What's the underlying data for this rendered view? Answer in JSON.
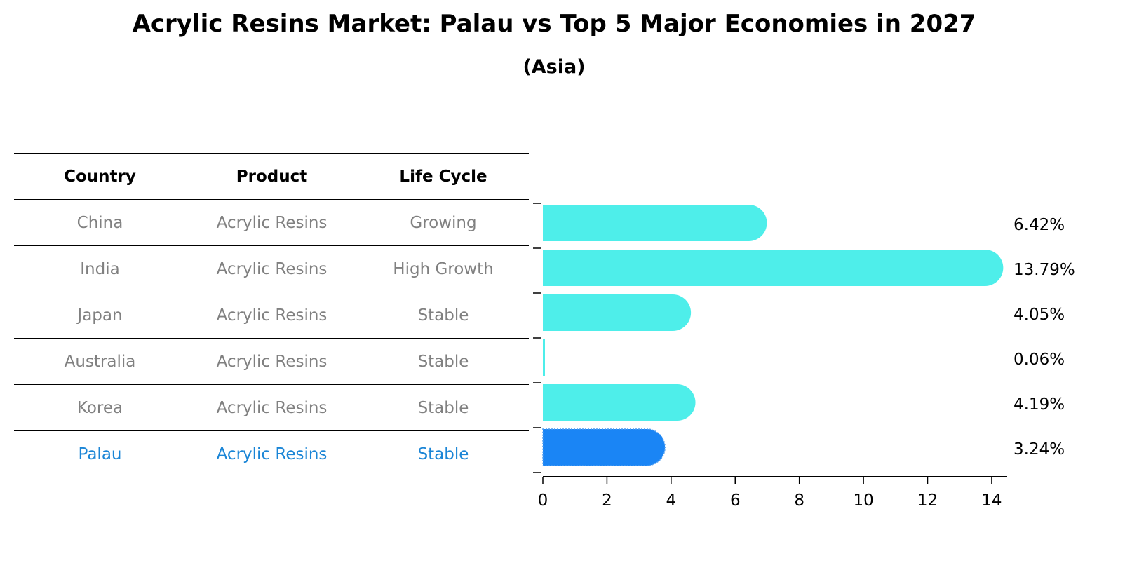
{
  "title": "Acrylic Resins Market: Palau vs Top 5 Major Economies in 2027",
  "subtitle": "(Asia)",
  "table": {
    "headers": [
      "Country",
      "Product",
      "Life Cycle"
    ],
    "rows": [
      {
        "country": "China",
        "product": "Acrylic Resins",
        "life_cycle": "Growing",
        "highlight": false
      },
      {
        "country": "India",
        "product": "Acrylic Resins",
        "life_cycle": "High Growth",
        "highlight": false
      },
      {
        "country": "Japan",
        "product": "Acrylic Resins",
        "life_cycle": "Stable",
        "highlight": false
      },
      {
        "country": "Australia",
        "product": "Acrylic Resins",
        "life_cycle": "Stable",
        "highlight": false
      },
      {
        "country": "Korea",
        "product": "Acrylic Resins",
        "life_cycle": "Stable",
        "highlight": false
      },
      {
        "country": "Palau",
        "product": "Acrylic Resins",
        "life_cycle": "Stable",
        "highlight": true
      }
    ]
  },
  "colors": {
    "bar": "#4eeeea",
    "highlight_bar": "#1a85f5",
    "highlight_text": "#1a85d6",
    "muted_text": "#808080"
  },
  "chart_data": {
    "type": "bar",
    "orientation": "horizontal",
    "title": "Acrylic Resins Market: Palau vs Top 5 Major Economies in 2027",
    "subtitle": "(Asia)",
    "categories": [
      "China",
      "India",
      "Japan",
      "Australia",
      "Korea",
      "Palau"
    ],
    "values": [
      6.42,
      13.79,
      4.05,
      0.06,
      4.19,
      3.24
    ],
    "value_labels": [
      "6.42%",
      "13.79%",
      "4.05%",
      "0.06%",
      "4.19%",
      "3.24%"
    ],
    "highlight": "Palau",
    "xlabel": "",
    "ylabel": "",
    "xlim": [
      0,
      14.5
    ],
    "xticks": [
      "0",
      "2",
      "4",
      "6",
      "8",
      "10",
      "12",
      "14"
    ],
    "grid": false,
    "legend": null
  }
}
